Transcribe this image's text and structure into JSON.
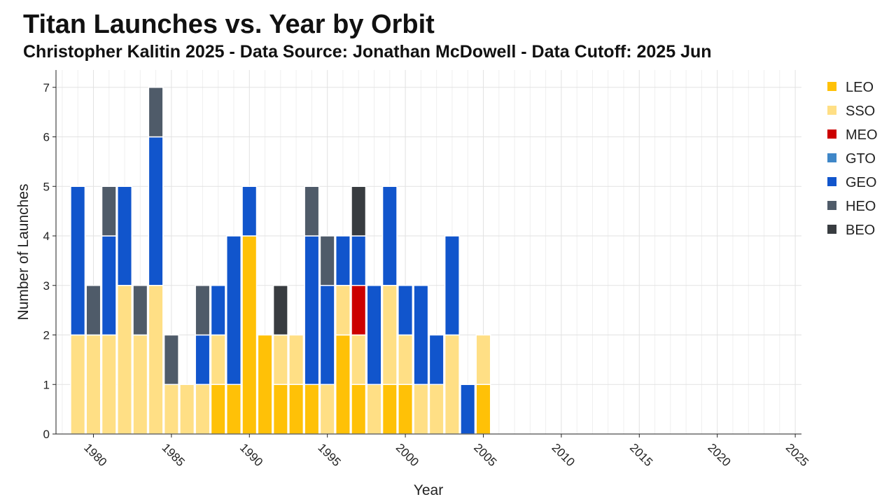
{
  "chart_data": {
    "type": "bar",
    "stacked": true,
    "title": "Titan Launches vs. Year by Orbit",
    "subtitle": "Christopher Kalitin 2025 - Data Source: Jonathan McDowell - Data Cutoff: 2025 Jun",
    "xlabel": "Year",
    "ylabel": "Number of Launches",
    "xlim": [
      1977.6,
      2025.4
    ],
    "ylim": [
      0,
      7.35
    ],
    "xticks": [
      "1980",
      "1985",
      "1990",
      "1995",
      "2000",
      "2005",
      "2010",
      "2015",
      "2020",
      "2025"
    ],
    "yticks": [
      "0",
      "1",
      "2",
      "3",
      "4",
      "5",
      "6",
      "7"
    ],
    "grid": true,
    "legend_position": "right",
    "x": [
      1979,
      1980,
      1981,
      1982,
      1983,
      1984,
      1985,
      1986,
      1987,
      1988,
      1989,
      1990,
      1991,
      1992,
      1993,
      1994,
      1995,
      1996,
      1997,
      1998,
      1999,
      2000,
      2001,
      2002,
      2003,
      2004,
      2005
    ],
    "series": [
      {
        "name": "LEO",
        "color": "#FFC107",
        "values": [
          0,
          0,
          0,
          0,
          0,
          0,
          0,
          0,
          0,
          1,
          1,
          4,
          2,
          1,
          1,
          1,
          0,
          2,
          1,
          0,
          1,
          1,
          0,
          0,
          0,
          0,
          1
        ]
      },
      {
        "name": "SSO",
        "color": "#FFDF85",
        "values": [
          2,
          2,
          2,
          3,
          2,
          3,
          1,
          1,
          1,
          1,
          0,
          0,
          0,
          1,
          1,
          0,
          1,
          1,
          1,
          1,
          2,
          1,
          1,
          1,
          2,
          0,
          1
        ]
      },
      {
        "name": "MEO",
        "color": "#CC0000",
        "values": [
          0,
          0,
          0,
          0,
          0,
          0,
          0,
          0,
          0,
          0,
          0,
          0,
          0,
          0,
          0,
          0,
          0,
          0,
          1,
          0,
          0,
          0,
          0,
          0,
          0,
          0,
          0
        ]
      },
      {
        "name": "GTO",
        "color": "#3F87C8",
        "values": [
          0,
          0,
          0,
          0,
          0,
          0,
          0,
          0,
          0,
          0,
          0,
          0,
          0,
          0,
          0,
          0,
          0,
          0,
          0,
          0,
          0,
          0,
          0,
          0,
          0,
          0,
          0
        ]
      },
      {
        "name": "GEO",
        "color": "#1155CC",
        "values": [
          3,
          0,
          2,
          2,
          0,
          3,
          0,
          0,
          1,
          1,
          3,
          1,
          0,
          0,
          0,
          3,
          2,
          1,
          1,
          2,
          2,
          1,
          2,
          1,
          2,
          1,
          0
        ]
      },
      {
        "name": "HEO",
        "color": "#4F5B69",
        "values": [
          0,
          1,
          1,
          0,
          1,
          1,
          1,
          0,
          1,
          0,
          0,
          0,
          0,
          0,
          0,
          1,
          1,
          0,
          0,
          0,
          0,
          0,
          0,
          0,
          0,
          0,
          0
        ]
      },
      {
        "name": "BEO",
        "color": "#383C40",
        "values": [
          0,
          0,
          0,
          0,
          0,
          0,
          0,
          0,
          0,
          0,
          0,
          0,
          0,
          1,
          0,
          0,
          0,
          0,
          1,
          0,
          0,
          0,
          0,
          0,
          0,
          0,
          0
        ]
      }
    ]
  }
}
